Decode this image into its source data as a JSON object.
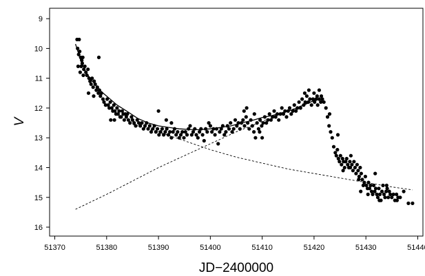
{
  "chart_data": {
    "type": "scatter",
    "xlabel": "JD−2400000",
    "ylabel": "V",
    "xlim": [
      51369,
      51441
    ],
    "ylim": [
      16.3,
      8.65
    ],
    "y_inverted": true,
    "grid": false,
    "xticks": [
      51370,
      51380,
      51390,
      51400,
      51410,
      51420,
      51430,
      51440
    ],
    "yticks": [
      9,
      10,
      11,
      12,
      13,
      14,
      15,
      16
    ],
    "observations": [
      [
        51374.3,
        9.7
      ],
      [
        51374.7,
        9.7
      ],
      [
        51374.4,
        10.0
      ],
      [
        51374.6,
        10.2
      ],
      [
        51374.8,
        10.1
      ],
      [
        51375.0,
        10.3
      ],
      [
        51375.2,
        10.4
      ],
      [
        51375.4,
        10.3
      ],
      [
        51375.1,
        10.6
      ],
      [
        51375.3,
        10.5
      ],
      [
        51375.6,
        10.7
      ],
      [
        51375.8,
        10.6
      ],
      [
        51376.0,
        10.8
      ],
      [
        51376.2,
        10.9
      ],
      [
        51376.4,
        10.7
      ],
      [
        51376.6,
        11.0
      ],
      [
        51376.8,
        11.1
      ],
      [
        51374.5,
        10.6
      ],
      [
        51374.9,
        10.8
      ],
      [
        51375.5,
        10.9
      ],
      [
        51377.0,
        11.2
      ],
      [
        51377.2,
        11.0
      ],
      [
        51377.4,
        11.3
      ],
      [
        51377.6,
        11.1
      ],
      [
        51377.8,
        11.2
      ],
      [
        51378.0,
        11.4
      ],
      [
        51378.2,
        11.3
      ],
      [
        51378.4,
        11.5
      ],
      [
        51378.6,
        11.4
      ],
      [
        51376.5,
        11.5
      ],
      [
        51377.5,
        11.6
      ],
      [
        51378.5,
        10.3
      ],
      [
        51378.8,
        11.6
      ],
      [
        51379.0,
        11.5
      ],
      [
        51379.3,
        11.7
      ],
      [
        51379.5,
        11.8
      ],
      [
        51379.8,
        11.9
      ],
      [
        51380.1,
        11.7
      ],
      [
        51380.3,
        11.9
      ],
      [
        51380.5,
        12.0
      ],
      [
        51380.7,
        11.8
      ],
      [
        51381.0,
        12.0
      ],
      [
        51381.2,
        12.1
      ],
      [
        51381.4,
        11.9
      ],
      [
        51381.6,
        12.1
      ],
      [
        51381.8,
        12.2
      ],
      [
        51382.0,
        12.0
      ],
      [
        51382.2,
        12.2
      ],
      [
        51382.4,
        12.1
      ],
      [
        51382.6,
        12.3
      ],
      [
        51380.8,
        12.4
      ],
      [
        51381.5,
        12.4
      ],
      [
        51382.8,
        12.3
      ],
      [
        51383.0,
        12.1
      ],
      [
        51383.2,
        12.2
      ],
      [
        51383.4,
        12.4
      ],
      [
        51383.6,
        12.2
      ],
      [
        51383.8,
        12.3
      ],
      [
        51384.0,
        12.2
      ],
      [
        51384.2,
        12.4
      ],
      [
        51384.5,
        12.5
      ],
      [
        51384.8,
        12.3
      ],
      [
        51385.0,
        12.4
      ],
      [
        51385.3,
        12.5
      ],
      [
        51385.6,
        12.6
      ],
      [
        51385.9,
        12.4
      ],
      [
        51386.2,
        12.5
      ],
      [
        51386.5,
        12.6
      ],
      [
        51386.8,
        12.5
      ],
      [
        51387.1,
        12.7
      ],
      [
        51387.4,
        12.6
      ],
      [
        51387.7,
        12.5
      ],
      [
        51388.0,
        12.7
      ],
      [
        51388.3,
        12.6
      ],
      [
        51388.6,
        12.8
      ],
      [
        51388.9,
        12.7
      ],
      [
        51389.2,
        12.6
      ],
      [
        51389.5,
        12.8
      ],
      [
        51389.8,
        12.7
      ],
      [
        51390.1,
        12.9
      ],
      [
        51390.4,
        12.8
      ],
      [
        51390.7,
        12.7
      ],
      [
        51391.0,
        12.9
      ],
      [
        51391.3,
        12.8
      ],
      [
        51391.6,
        12.7
      ],
      [
        51391.9,
        12.9
      ],
      [
        51392.2,
        12.8
      ],
      [
        51392.5,
        13.0
      ],
      [
        51392.8,
        12.8
      ],
      [
        51393.1,
        12.7
      ],
      [
        51393.4,
        12.9
      ],
      [
        51393.7,
        12.8
      ],
      [
        51394.0,
        13.0
      ],
      [
        51390.0,
        12.1
      ],
      [
        51391.5,
        12.4
      ],
      [
        51392.5,
        12.5
      ],
      [
        51394.3,
        12.9
      ],
      [
        51394.6,
        12.8
      ],
      [
        51394.9,
        13.0
      ],
      [
        51395.2,
        12.8
      ],
      [
        51395.5,
        12.9
      ],
      [
        51395.8,
        12.7
      ],
      [
        51396.1,
        12.6
      ],
      [
        51396.4,
        12.9
      ],
      [
        51396.7,
        12.8
      ],
      [
        51397.0,
        12.7
      ],
      [
        51397.3,
        12.9
      ],
      [
        51397.6,
        13.0
      ],
      [
        51397.9,
        12.8
      ],
      [
        51398.2,
        12.7
      ],
      [
        51398.5,
        12.9
      ],
      [
        51398.8,
        13.1
      ],
      [
        51399.1,
        12.7
      ],
      [
        51399.4,
        12.8
      ],
      [
        51399.7,
        12.5
      ],
      [
        51400.0,
        12.6
      ],
      [
        51400.3,
        12.8
      ],
      [
        51400.6,
        12.7
      ],
      [
        51400.9,
        12.9
      ],
      [
        51401.2,
        12.7
      ],
      [
        51401.5,
        13.2
      ],
      [
        51401.8,
        12.8
      ],
      [
        51402.1,
        12.7
      ],
      [
        51402.4,
        12.6
      ],
      [
        51402.7,
        12.9
      ],
      [
        51403.0,
        12.8
      ],
      [
        51403.3,
        12.6
      ],
      [
        51403.6,
        12.7
      ],
      [
        51403.9,
        12.5
      ],
      [
        51404.2,
        12.8
      ],
      [
        51404.5,
        12.7
      ],
      [
        51404.8,
        12.4
      ],
      [
        51405.1,
        12.6
      ],
      [
        51405.4,
        12.5
      ],
      [
        51405.7,
        12.7
      ],
      [
        51406.0,
        12.5
      ],
      [
        51406.3,
        12.4
      ],
      [
        51406.6,
        12.6
      ],
      [
        51406.9,
        12.3
      ],
      [
        51407.2,
        12.5
      ],
      [
        51407.5,
        12.7
      ],
      [
        51407.8,
        12.4
      ],
      [
        51408.1,
        12.6
      ],
      [
        51408.4,
        12.8
      ],
      [
        51408.7,
        13.0
      ],
      [
        51409.0,
        12.5
      ],
      [
        51409.3,
        12.7
      ],
      [
        51409.6,
        12.4
      ],
      [
        51409.9,
        12.6
      ],
      [
        51410.2,
        12.5
      ],
      [
        51410.5,
        12.3
      ],
      [
        51410.8,
        12.5
      ],
      [
        51411.1,
        12.4
      ],
      [
        51411.4,
        12.2
      ],
      [
        51411.7,
        12.4
      ],
      [
        51412.0,
        12.3
      ],
      [
        51412.3,
        12.1
      ],
      [
        51412.6,
        12.3
      ],
      [
        51412.9,
        12.2
      ],
      [
        51413.2,
        12.4
      ],
      [
        51406.5,
        12.1
      ],
      [
        51407.0,
        12.0
      ],
      [
        51408.5,
        12.2
      ],
      [
        51409.5,
        12.8
      ],
      [
        51410.0,
        13.0
      ],
      [
        51413.5,
        12.2
      ],
      [
        51413.8,
        12.0
      ],
      [
        51414.1,
        12.2
      ],
      [
        51414.4,
        12.1
      ],
      [
        51414.7,
        12.3
      ],
      [
        51415.0,
        12.1
      ],
      [
        51415.3,
        12.0
      ],
      [
        51415.6,
        12.2
      ],
      [
        51415.9,
        12.1
      ],
      [
        51416.2,
        11.9
      ],
      [
        51416.5,
        12.1
      ],
      [
        51416.8,
        12.0
      ],
      [
        51417.1,
        11.8
      ],
      [
        51417.4,
        12.0
      ],
      [
        51417.7,
        11.7
      ],
      [
        51418.0,
        11.9
      ],
      [
        51418.3,
        11.8
      ],
      [
        51418.6,
        11.6
      ],
      [
        51418.9,
        11.8
      ],
      [
        51419.2,
        11.7
      ],
      [
        51419.5,
        11.9
      ],
      [
        51419.8,
        11.7
      ],
      [
        51420.1,
        11.8
      ],
      [
        51420.4,
        11.7
      ],
      [
        51420.7,
        11.9
      ],
      [
        51421.0,
        11.7
      ],
      [
        51421.3,
        11.8
      ],
      [
        51421.6,
        11.7
      ],
      [
        51421.9,
        11.8
      ],
      [
        51418.2,
        11.5
      ],
      [
        51420.0,
        11.5
      ],
      [
        51420.6,
        11.6
      ],
      [
        51421.4,
        11.6
      ],
      [
        51419.0,
        11.4
      ],
      [
        51421.0,
        11.4
      ],
      [
        51422.3,
        12.0
      ],
      [
        51422.6,
        12.3
      ],
      [
        51422.9,
        12.6
      ],
      [
        51423.2,
        12.8
      ],
      [
        51423.5,
        13.0
      ],
      [
        51423.8,
        13.3
      ],
      [
        51424.1,
        13.5
      ],
      [
        51424.3,
        13.6
      ],
      [
        51424.5,
        13.4
      ],
      [
        51424.7,
        13.7
      ],
      [
        51424.9,
        13.8
      ],
      [
        51425.1,
        13.6
      ],
      [
        51425.3,
        13.9
      ],
      [
        51425.5,
        13.7
      ],
      [
        51425.7,
        13.8
      ],
      [
        51425.9,
        14.0
      ],
      [
        51426.1,
        13.8
      ],
      [
        51426.3,
        13.7
      ],
      [
        51426.5,
        13.9
      ],
      [
        51426.7,
        14.0
      ],
      [
        51426.9,
        13.8
      ],
      [
        51427.1,
        13.6
      ],
      [
        51427.3,
        13.9
      ],
      [
        51427.5,
        14.1
      ],
      [
        51427.7,
        13.8
      ],
      [
        51427.9,
        14.0
      ],
      [
        51428.1,
        14.2
      ],
      [
        51428.3,
        13.9
      ],
      [
        51428.5,
        14.1
      ],
      [
        51428.7,
        14.3
      ],
      [
        51428.9,
        14.0
      ],
      [
        51429.1,
        14.2
      ],
      [
        51429.3,
        14.4
      ],
      [
        51429.5,
        14.6
      ],
      [
        51429.7,
        14.5
      ],
      [
        51429.9,
        14.3
      ],
      [
        51430.1,
        14.6
      ],
      [
        51430.3,
        14.7
      ],
      [
        51430.5,
        14.5
      ],
      [
        51430.7,
        14.7
      ],
      [
        51430.9,
        14.6
      ],
      [
        51431.1,
        14.8
      ],
      [
        51431.3,
        14.9
      ],
      [
        51431.5,
        14.6
      ],
      [
        51431.7,
        14.8
      ],
      [
        51431.9,
        14.7
      ],
      [
        51432.1,
        14.9
      ],
      [
        51432.3,
        15.0
      ],
      [
        51432.5,
        14.7
      ],
      [
        51432.7,
        14.9
      ],
      [
        51432.9,
        15.1
      ],
      [
        51433.1,
        14.8
      ],
      [
        51433.3,
        14.6
      ],
      [
        51433.5,
        14.9
      ],
      [
        51433.7,
        15.0
      ],
      [
        51433.9,
        14.8
      ],
      [
        51434.1,
        14.7
      ],
      [
        51434.3,
        15.0
      ],
      [
        51434.5,
        14.8
      ],
      [
        51434.7,
        14.9
      ],
      [
        51435.0,
        15.0
      ],
      [
        51435.3,
        14.9
      ],
      [
        51435.6,
        15.1
      ],
      [
        51435.9,
        14.9
      ],
      [
        51436.2,
        15.0
      ],
      [
        51436.6,
        15.0
      ],
      [
        51437.3,
        14.8
      ],
      [
        51438.2,
        15.2
      ],
      [
        51439.0,
        15.2
      ],
      [
        51431.8,
        14.2
      ],
      [
        51424.6,
        12.9
      ],
      [
        51423.0,
        12.2
      ],
      [
        51429.0,
        14.8
      ],
      [
        51430.4,
        14.9
      ],
      [
        51432.6,
        15.1
      ],
      [
        51434.0,
        14.6
      ],
      [
        51436.0,
        15.1
      ],
      [
        51427.0,
        14.0
      ],
      [
        51425.6,
        14.1
      ],
      [
        51428.6,
        14.4
      ]
    ],
    "models": [
      {
        "role": "total-fit",
        "points": [
          [
            51374.0,
            9.85
          ],
          [
            51375.0,
            10.4
          ],
          [
            51376.0,
            10.8
          ],
          [
            51377.0,
            11.05
          ],
          [
            51378.0,
            11.25
          ],
          [
            51379.0,
            11.45
          ],
          [
            51380.0,
            11.6
          ],
          [
            51382.0,
            11.9
          ],
          [
            51384.0,
            12.12
          ],
          [
            51386.0,
            12.35
          ],
          [
            51388.0,
            12.5
          ],
          [
            51390.0,
            12.6
          ],
          [
            51392.0,
            12.65
          ],
          [
            51394.0,
            12.7
          ],
          [
            51396.0,
            12.72
          ],
          [
            51398.0,
            12.73
          ],
          [
            51400.0,
            12.7
          ],
          [
            51402.0,
            12.65
          ],
          [
            51404.0,
            12.6
          ],
          [
            51406.0,
            12.5
          ],
          [
            51408.0,
            12.42
          ],
          [
            51410.0,
            12.32
          ],
          [
            51412.0,
            12.25
          ],
          [
            51414.0,
            12.15
          ],
          [
            51416.0,
            12.05
          ],
          [
            51418.0,
            11.9
          ],
          [
            51420.0,
            11.75
          ],
          [
            51421.0,
            11.7
          ]
        ]
      },
      {
        "role": "decay-component",
        "dashed": true,
        "points": [
          [
            51385.0,
            12.55
          ],
          [
            51390.0,
            12.8
          ],
          [
            51395.0,
            13.1
          ],
          [
            51400.0,
            13.4
          ],
          [
            51405.0,
            13.65
          ],
          [
            51410.0,
            13.85
          ],
          [
            51415.0,
            14.05
          ],
          [
            51420.0,
            14.2
          ],
          [
            51425.0,
            14.35
          ],
          [
            51430.0,
            14.5
          ],
          [
            51435.0,
            14.65
          ],
          [
            51439.0,
            14.75
          ]
        ]
      },
      {
        "role": "rise-component",
        "dashed": true,
        "points": [
          [
            51374.0,
            15.4
          ],
          [
            51380.0,
            14.9
          ],
          [
            51385.0,
            14.45
          ],
          [
            51390.0,
            14.0
          ],
          [
            51395.0,
            13.6
          ],
          [
            51400.0,
            13.2
          ],
          [
            51405.0,
            12.8
          ],
          [
            51410.0,
            12.45
          ],
          [
            51415.0,
            12.1
          ],
          [
            51420.0,
            11.75
          ]
        ]
      }
    ]
  }
}
